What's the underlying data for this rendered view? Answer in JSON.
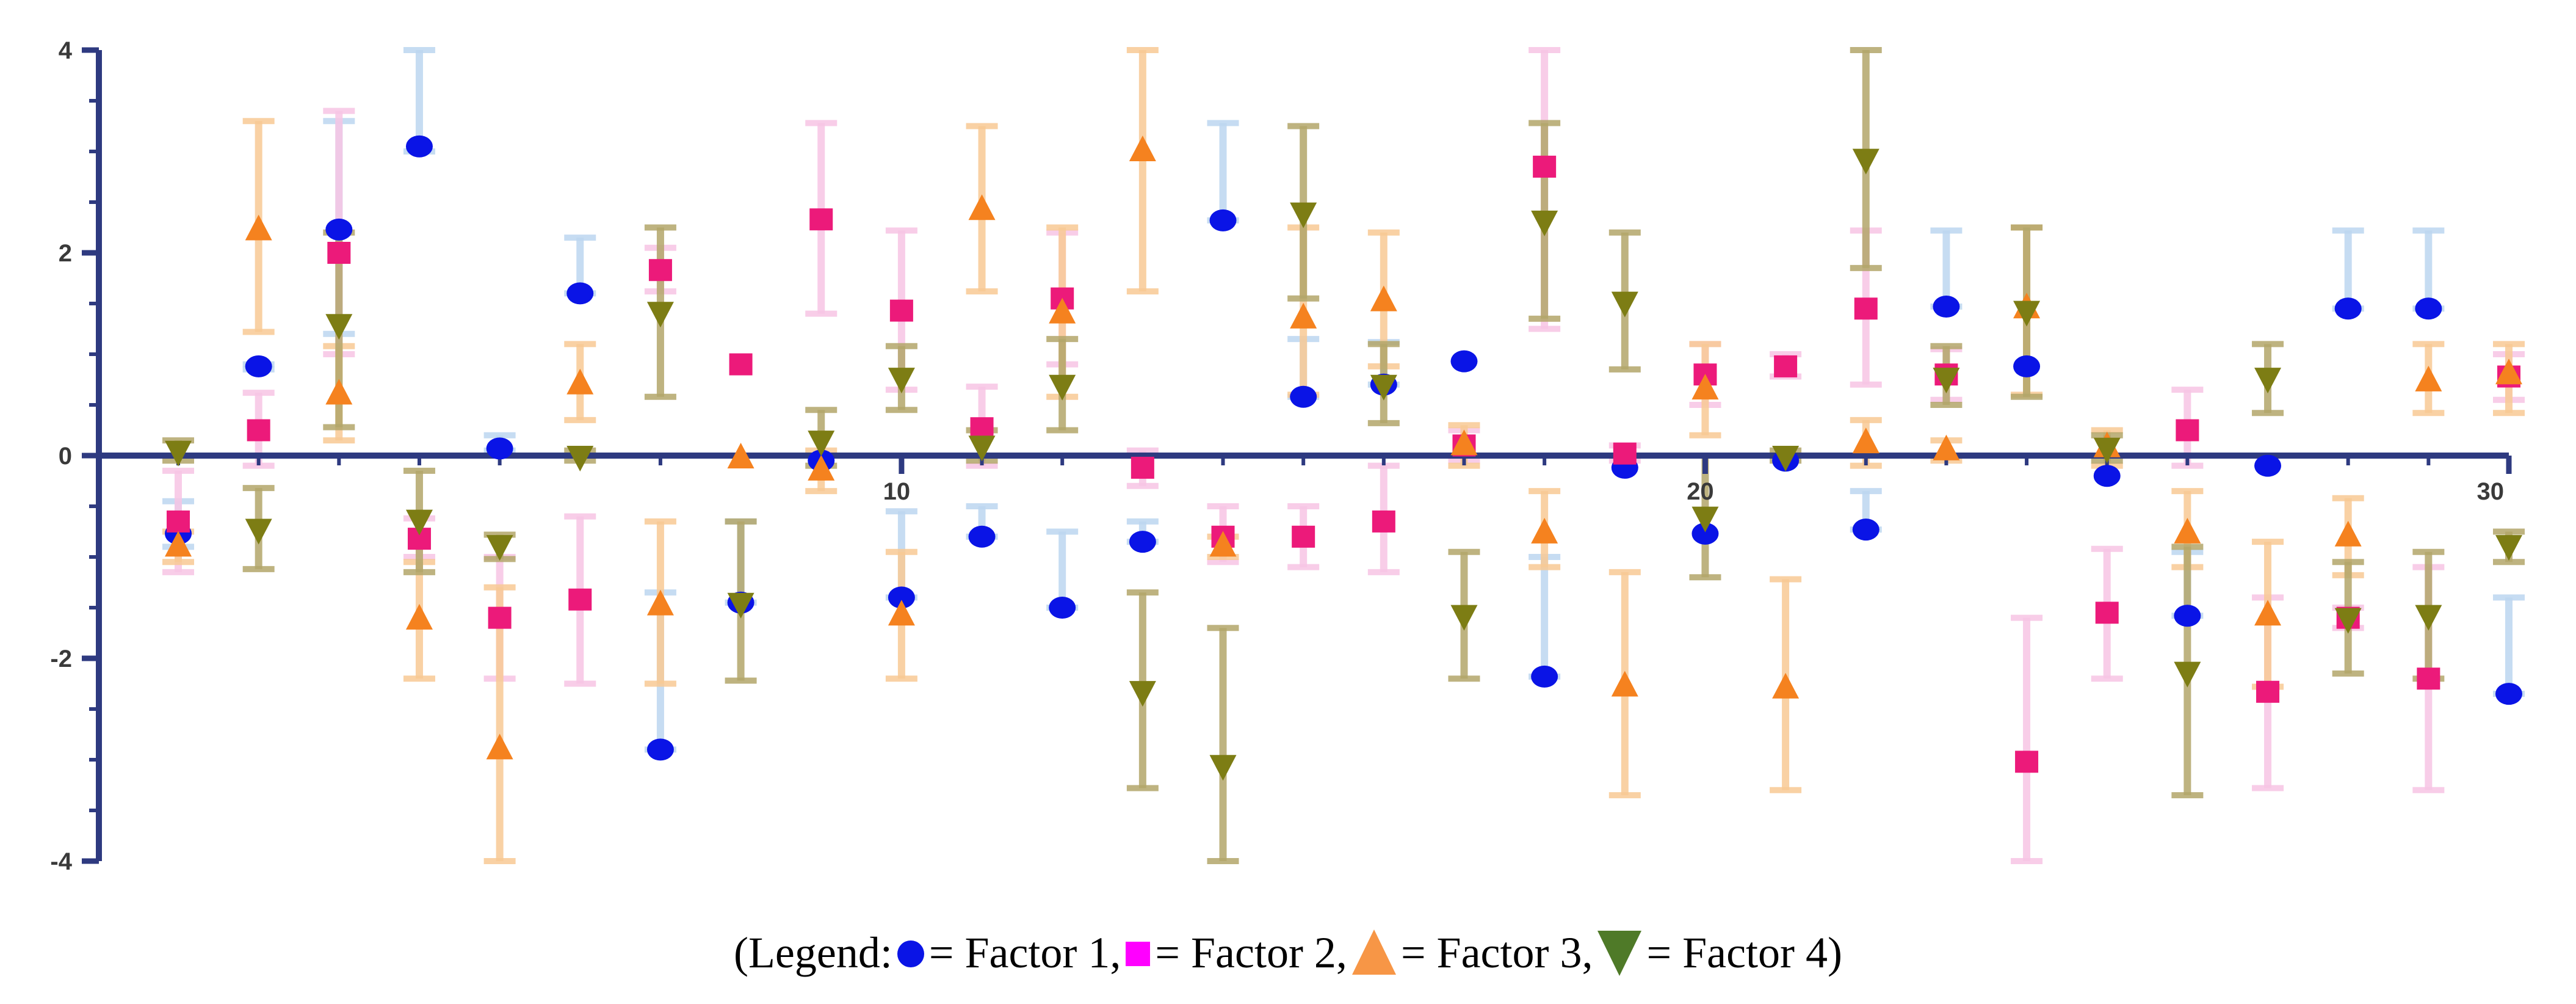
{
  "chart_data": {
    "type": "scatter",
    "title": "",
    "xlabel": "",
    "ylabel": "",
    "xlim": [
      0,
      30
    ],
    "ylim": [
      -4,
      4
    ],
    "x_ticks": [
      10,
      20,
      30
    ],
    "y_ticks": [
      4,
      2,
      0,
      -2,
      -4
    ],
    "x_tick_labels": [
      "10",
      "20",
      "30"
    ],
    "y_tick_labels": [
      "4",
      "2",
      "0",
      "-2",
      "-4"
    ],
    "grid": false,
    "legend_placement": "bottom",
    "series": [
      {
        "name": "Factor 1",
        "marker": "circle",
        "color": "#0a14e6",
        "bar_color": "#bcd6f0",
        "points": [
          {
            "x": 1,
            "y": -0.77,
            "lo": -0.9,
            "hi": -0.45
          },
          {
            "x": 2,
            "y": 0.88,
            "lo": 0.85,
            "hi": 0.9
          },
          {
            "x": 3,
            "y": 2.23,
            "lo": 1.2,
            "hi": 3.3
          },
          {
            "x": 4,
            "y": 3.05,
            "lo": 3.0,
            "hi": 4.0
          },
          {
            "x": 5,
            "y": 0.07,
            "lo": 0.05,
            "hi": 0.2
          },
          {
            "x": 6,
            "y": 1.6,
            "lo": 1.6,
            "hi": 2.15
          },
          {
            "x": 7,
            "y": -2.9,
            "lo": -2.9,
            "hi": -1.35
          },
          {
            "x": 8,
            "y": -1.45,
            "lo": -1.45,
            "hi": -0.65
          },
          {
            "x": 9,
            "y": -0.05,
            "lo": -0.05,
            "hi": -0.05
          },
          {
            "x": 10,
            "y": -1.4,
            "lo": -1.4,
            "hi": -0.55
          },
          {
            "x": 11,
            "y": -0.8,
            "lo": -0.8,
            "hi": -0.5
          },
          {
            "x": 12,
            "y": -1.5,
            "lo": -1.5,
            "hi": -0.75
          },
          {
            "x": 13,
            "y": -0.85,
            "lo": -0.85,
            "hi": -0.65
          },
          {
            "x": 14,
            "y": 2.32,
            "lo": 2.32,
            "hi": 3.28
          },
          {
            "x": 15,
            "y": 0.58,
            "lo": 0.58,
            "hi": 1.15
          },
          {
            "x": 16,
            "y": 0.7,
            "lo": 0.7,
            "hi": 1.12
          },
          {
            "x": 17,
            "y": 0.93,
            "lo": 0.93,
            "hi": 0.93
          },
          {
            "x": 18,
            "y": -2.18,
            "lo": -2.18,
            "hi": -1.0
          },
          {
            "x": 19,
            "y": -0.12,
            "lo": -0.12,
            "hi": -0.12
          },
          {
            "x": 20,
            "y": -0.77,
            "lo": -0.77,
            "hi": -0.77
          },
          {
            "x": 21,
            "y": -0.05,
            "lo": -0.05,
            "hi": -0.05
          },
          {
            "x": 22,
            "y": -0.73,
            "lo": -0.73,
            "hi": -0.35
          },
          {
            "x": 23,
            "y": 1.47,
            "lo": 1.47,
            "hi": 2.22
          },
          {
            "x": 24,
            "y": 0.88,
            "lo": 0.88,
            "hi": 0.88
          },
          {
            "x": 25,
            "y": -0.2,
            "lo": -0.2,
            "hi": -0.2
          },
          {
            "x": 26,
            "y": -1.58,
            "lo": -1.58,
            "hi": -0.95
          },
          {
            "x": 27,
            "y": -0.1,
            "lo": -0.1,
            "hi": -0.1
          },
          {
            "x": 28,
            "y": 1.45,
            "lo": 1.45,
            "hi": 2.22
          },
          {
            "x": 29,
            "y": 1.45,
            "lo": 1.45,
            "hi": 2.22
          },
          {
            "x": 30,
            "y": -2.35,
            "lo": -2.35,
            "hi": -1.4
          }
        ]
      },
      {
        "name": "Factor 2",
        "marker": "square",
        "color": "#ec1a7a",
        "bar_color": "#f7c4e4",
        "points": [
          {
            "x": 1,
            "y": -0.65,
            "lo": -1.15,
            "hi": -0.15
          },
          {
            "x": 2,
            "y": 0.25,
            "lo": -0.1,
            "hi": 0.62
          },
          {
            "x": 3,
            "y": 2.0,
            "lo": 1.0,
            "hi": 3.4
          },
          {
            "x": 4,
            "y": -0.82,
            "lo": -1.0,
            "hi": -0.62
          },
          {
            "x": 5,
            "y": -1.6,
            "lo": -2.2,
            "hi": -1.0
          },
          {
            "x": 6,
            "y": -1.42,
            "lo": -2.25,
            "hi": -0.6
          },
          {
            "x": 7,
            "y": 1.83,
            "lo": 1.62,
            "hi": 2.05
          },
          {
            "x": 8,
            "y": 0.9,
            "lo": 0.9,
            "hi": 0.9
          },
          {
            "x": 9,
            "y": 2.33,
            "lo": 1.4,
            "hi": 3.28
          },
          {
            "x": 10,
            "y": 1.43,
            "lo": 0.65,
            "hi": 2.22
          },
          {
            "x": 11,
            "y": 0.27,
            "lo": -0.1,
            "hi": 0.68
          },
          {
            "x": 12,
            "y": 1.55,
            "lo": 0.9,
            "hi": 2.2
          },
          {
            "x": 13,
            "y": -0.12,
            "lo": -0.3,
            "hi": 0.05
          },
          {
            "x": 14,
            "y": -0.8,
            "lo": -1.05,
            "hi": -0.5
          },
          {
            "x": 15,
            "y": -0.8,
            "lo": -1.1,
            "hi": -0.5
          },
          {
            "x": 16,
            "y": -0.65,
            "lo": -1.15,
            "hi": -0.1
          },
          {
            "x": 17,
            "y": 0.1,
            "lo": -0.05,
            "hi": 0.25
          },
          {
            "x": 18,
            "y": 2.85,
            "lo": 1.25,
            "hi": 4.0
          },
          {
            "x": 19,
            "y": 0.02,
            "lo": -0.05,
            "hi": 0.1
          },
          {
            "x": 20,
            "y": 0.8,
            "lo": 0.5,
            "hi": 1.1
          },
          {
            "x": 21,
            "y": 0.88,
            "lo": 0.78,
            "hi": 1.0
          },
          {
            "x": 22,
            "y": 1.45,
            "lo": 0.7,
            "hi": 2.22
          },
          {
            "x": 23,
            "y": 0.8,
            "lo": 0.55,
            "hi": 1.05
          },
          {
            "x": 24,
            "y": -3.02,
            "lo": -4.0,
            "hi": -1.6
          },
          {
            "x": 25,
            "y": -1.55,
            "lo": -2.2,
            "hi": -0.92
          },
          {
            "x": 26,
            "y": 0.25,
            "lo": -0.1,
            "hi": 0.65
          },
          {
            "x": 27,
            "y": -2.33,
            "lo": -3.28,
            "hi": -1.4
          },
          {
            "x": 28,
            "y": -1.6,
            "lo": -1.7,
            "hi": -1.5
          },
          {
            "x": 29,
            "y": -2.2,
            "lo": -3.3,
            "hi": -1.1
          },
          {
            "x": 30,
            "y": 0.78,
            "lo": 0.55,
            "hi": 1.0
          }
        ]
      },
      {
        "name": "Factor 3",
        "marker": "triangle-up",
        "color": "#f5821f",
        "bar_color": "#f8c994",
        "points": [
          {
            "x": 1,
            "y": -0.9,
            "lo": -1.05,
            "hi": -0.75
          },
          {
            "x": 2,
            "y": 2.22,
            "lo": 1.22,
            "hi": 3.3
          },
          {
            "x": 3,
            "y": 0.6,
            "lo": 0.15,
            "hi": 1.08
          },
          {
            "x": 4,
            "y": -1.62,
            "lo": -2.2,
            "hi": -1.05
          },
          {
            "x": 5,
            "y": -2.9,
            "lo": -4.0,
            "hi": -1.3
          },
          {
            "x": 6,
            "y": 0.7,
            "lo": 0.35,
            "hi": 1.1
          },
          {
            "x": 7,
            "y": -1.48,
            "lo": -2.25,
            "hi": -0.65
          },
          {
            "x": 8,
            "y": -0.03,
            "lo": -0.03,
            "hi": -0.03
          },
          {
            "x": 9,
            "y": -0.15,
            "lo": -0.35,
            "hi": 0.05
          },
          {
            "x": 10,
            "y": -1.58,
            "lo": -2.2,
            "hi": -0.95
          },
          {
            "x": 11,
            "y": 2.42,
            "lo": 1.62,
            "hi": 3.25
          },
          {
            "x": 12,
            "y": 1.4,
            "lo": 0.58,
            "hi": 2.25
          },
          {
            "x": 13,
            "y": 3.0,
            "lo": 1.62,
            "hi": 4.0
          },
          {
            "x": 14,
            "y": -0.9,
            "lo": -1.0,
            "hi": -0.8
          },
          {
            "x": 15,
            "y": 1.35,
            "lo": 0.6,
            "hi": 2.25
          },
          {
            "x": 16,
            "y": 1.52,
            "lo": 0.88,
            "hi": 2.2
          },
          {
            "x": 17,
            "y": 0.1,
            "lo": -0.1,
            "hi": 0.3
          },
          {
            "x": 18,
            "y": -0.77,
            "lo": -1.1,
            "hi": -0.35
          },
          {
            "x": 19,
            "y": -2.28,
            "lo": -3.35,
            "hi": -1.15
          },
          {
            "x": 20,
            "y": 0.65,
            "lo": 0.2,
            "hi": 1.1
          },
          {
            "x": 21,
            "y": -2.3,
            "lo": -3.3,
            "hi": -1.22
          },
          {
            "x": 22,
            "y": 0.12,
            "lo": -0.1,
            "hi": 0.35
          },
          {
            "x": 23,
            "y": 0.05,
            "lo": -0.05,
            "hi": 0.15
          },
          {
            "x": 24,
            "y": 1.45,
            "lo": 0.6,
            "hi": 2.25
          },
          {
            "x": 25,
            "y": 0.08,
            "lo": -0.1,
            "hi": 0.25
          },
          {
            "x": 26,
            "y": -0.77,
            "lo": -1.1,
            "hi": -0.35
          },
          {
            "x": 27,
            "y": -1.58,
            "lo": -2.28,
            "hi": -0.85
          },
          {
            "x": 28,
            "y": -0.8,
            "lo": -1.18,
            "hi": -0.42
          },
          {
            "x": 29,
            "y": 0.73,
            "lo": 0.42,
            "hi": 1.1
          },
          {
            "x": 30,
            "y": 0.8,
            "lo": 0.42,
            "hi": 1.1
          }
        ]
      },
      {
        "name": "Factor 4",
        "marker": "triangle-down",
        "color": "#7d7d14",
        "bar_color": "#b3a66a",
        "points": [
          {
            "x": 1,
            "y": 0.05,
            "lo": -0.05,
            "hi": 0.15
          },
          {
            "x": 2,
            "y": -0.72,
            "lo": -1.12,
            "hi": -0.32
          },
          {
            "x": 3,
            "y": 1.3,
            "lo": 0.28,
            "hi": 2.2
          },
          {
            "x": 4,
            "y": -0.63,
            "lo": -1.15,
            "hi": -0.15
          },
          {
            "x": 5,
            "y": -0.88,
            "lo": -1.02,
            "hi": -0.78
          },
          {
            "x": 6,
            "y": 0.0,
            "lo": -0.05,
            "hi": 0.05
          },
          {
            "x": 7,
            "y": 1.42,
            "lo": 0.58,
            "hi": 2.25
          },
          {
            "x": 8,
            "y": -1.45,
            "lo": -2.22,
            "hi": -0.65
          },
          {
            "x": 9,
            "y": 0.15,
            "lo": -0.1,
            "hi": 0.45
          },
          {
            "x": 10,
            "y": 0.77,
            "lo": 0.45,
            "hi": 1.08
          },
          {
            "x": 11,
            "y": 0.1,
            "lo": -0.05,
            "hi": 0.25
          },
          {
            "x": 12,
            "y": 0.7,
            "lo": 0.25,
            "hi": 1.15
          },
          {
            "x": 13,
            "y": -2.32,
            "lo": -3.28,
            "hi": -1.35
          },
          {
            "x": 14,
            "y": -3.05,
            "lo": -4.0,
            "hi": -1.7
          },
          {
            "x": 15,
            "y": 2.4,
            "lo": 1.55,
            "hi": 3.25
          },
          {
            "x": 16,
            "y": 0.7,
            "lo": 0.32,
            "hi": 1.1
          },
          {
            "x": 17,
            "y": -1.57,
            "lo": -2.2,
            "hi": -0.95
          },
          {
            "x": 18,
            "y": 2.32,
            "lo": 1.35,
            "hi": 3.28
          },
          {
            "x": 19,
            "y": 1.52,
            "lo": 0.85,
            "hi": 2.2
          },
          {
            "x": 20,
            "y": -0.6,
            "lo": -1.2,
            "hi": 0.0
          },
          {
            "x": 21,
            "y": 0.0,
            "lo": -0.05,
            "hi": 0.05
          },
          {
            "x": 22,
            "y": 2.93,
            "lo": 1.85,
            "hi": 4.0
          },
          {
            "x": 23,
            "y": 0.77,
            "lo": 0.5,
            "hi": 1.08
          },
          {
            "x": 24,
            "y": 1.43,
            "lo": 0.58,
            "hi": 2.25
          },
          {
            "x": 25,
            "y": 0.08,
            "lo": -0.05,
            "hi": 0.2
          },
          {
            "x": 26,
            "y": -2.13,
            "lo": -3.35,
            "hi": -0.9
          },
          {
            "x": 27,
            "y": 0.77,
            "lo": 0.42,
            "hi": 1.1
          },
          {
            "x": 28,
            "y": -1.6,
            "lo": -2.15,
            "hi": -1.05
          },
          {
            "x": 29,
            "y": -1.57,
            "lo": -2.2,
            "hi": -0.95
          },
          {
            "x": 30,
            "y": -0.88,
            "lo": -1.05,
            "hi": -0.75
          }
        ]
      }
    ]
  },
  "legend": {
    "prefix": "(Legend: ",
    "items": [
      {
        "text": "= Factor 1,",
        "color": "#0a14e6",
        "marker": "circle"
      },
      {
        "text": "= Factor 2,",
        "color": "#ff00ff",
        "marker": "square"
      },
      {
        "text": " = Factor 3,",
        "color": "#f79646",
        "marker": "triangle-up"
      },
      {
        "text": " = Factor 4)",
        "color": "#4f7a28",
        "marker": "triangle-down"
      }
    ]
  }
}
